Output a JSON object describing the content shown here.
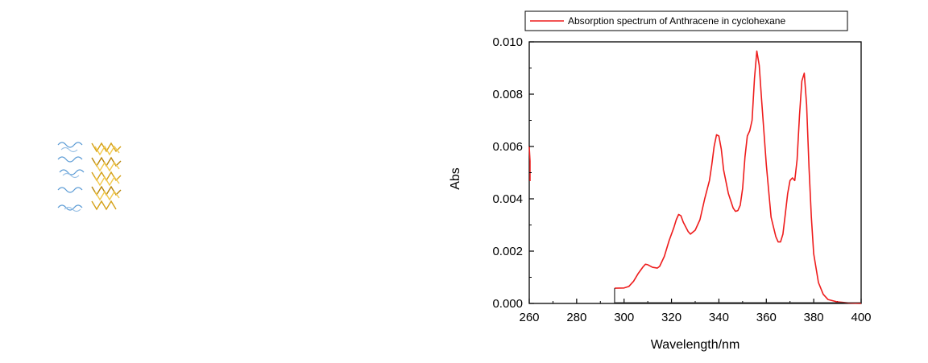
{
  "chart_data": {
    "type": "line",
    "title": "",
    "xlabel": "Wavelength/nm",
    "ylabel": "Abs",
    "xlim": [
      260,
      400
    ],
    "ylim": [
      0,
      0.01
    ],
    "x_ticks": [
      "260",
      "280",
      "300",
      "320",
      "340",
      "360",
      "380",
      "400"
    ],
    "y_ticks": [
      "0.000",
      "0.002",
      "0.004",
      "0.006",
      "0.008",
      "0.010"
    ],
    "legend_position": "top",
    "series": [
      {
        "name": "Absorption spectrum of Anthracene in cyclohexane",
        "color": "#ee1c1c",
        "points": [
          [
            296,
            0.00058
          ],
          [
            300,
            0.00059
          ],
          [
            302,
            0.00065
          ],
          [
            304,
            0.00085
          ],
          [
            306,
            0.00115
          ],
          [
            308,
            0.0014
          ],
          [
            309,
            0.0015
          ],
          [
            310,
            0.00148
          ],
          [
            312,
            0.00138
          ],
          [
            314,
            0.00135
          ],
          [
            315,
            0.00142
          ],
          [
            317,
            0.0018
          ],
          [
            319,
            0.0024
          ],
          [
            321,
            0.0029
          ],
          [
            322,
            0.0032
          ],
          [
            323,
            0.0034
          ],
          [
            324,
            0.00335
          ],
          [
            325,
            0.0031
          ],
          [
            327,
            0.00275
          ],
          [
            328,
            0.00265
          ],
          [
            330,
            0.0028
          ],
          [
            332,
            0.0032
          ],
          [
            334,
            0.004
          ],
          [
            336,
            0.0047
          ],
          [
            337,
            0.0053
          ],
          [
            338,
            0.006
          ],
          [
            339,
            0.00645
          ],
          [
            340,
            0.0064
          ],
          [
            341,
            0.0059
          ],
          [
            342,
            0.0051
          ],
          [
            344,
            0.0042
          ],
          [
            346,
            0.00365
          ],
          [
            347,
            0.00352
          ],
          [
            348,
            0.00355
          ],
          [
            349,
            0.00375
          ],
          [
            350,
            0.0044
          ],
          [
            351,
            0.0056
          ],
          [
            352,
            0.0064
          ],
          [
            353,
            0.0066
          ],
          [
            354,
            0.007
          ],
          [
            355,
            0.0086
          ],
          [
            356,
            0.00965
          ],
          [
            357,
            0.0091
          ],
          [
            358,
            0.0078
          ],
          [
            360,
            0.0053
          ],
          [
            362,
            0.0033
          ],
          [
            364,
            0.00255
          ],
          [
            365,
            0.00235
          ],
          [
            366,
            0.00235
          ],
          [
            367,
            0.00265
          ],
          [
            368,
            0.0034
          ],
          [
            369,
            0.0042
          ],
          [
            370,
            0.0047
          ],
          [
            371,
            0.0048
          ],
          [
            372,
            0.0047
          ],
          [
            373,
            0.0055
          ],
          [
            374,
            0.0072
          ],
          [
            375,
            0.0085
          ],
          [
            376,
            0.0088
          ],
          [
            377,
            0.0076
          ],
          [
            378,
            0.0052
          ],
          [
            379,
            0.0033
          ],
          [
            380,
            0.0019
          ],
          [
            382,
            0.0008
          ],
          [
            384,
            0.00035
          ],
          [
            386,
            0.00015
          ],
          [
            390,
            6e-05
          ],
          [
            395,
            2e-05
          ],
          [
            400,
            0.0
          ]
        ]
      }
    ]
  }
}
